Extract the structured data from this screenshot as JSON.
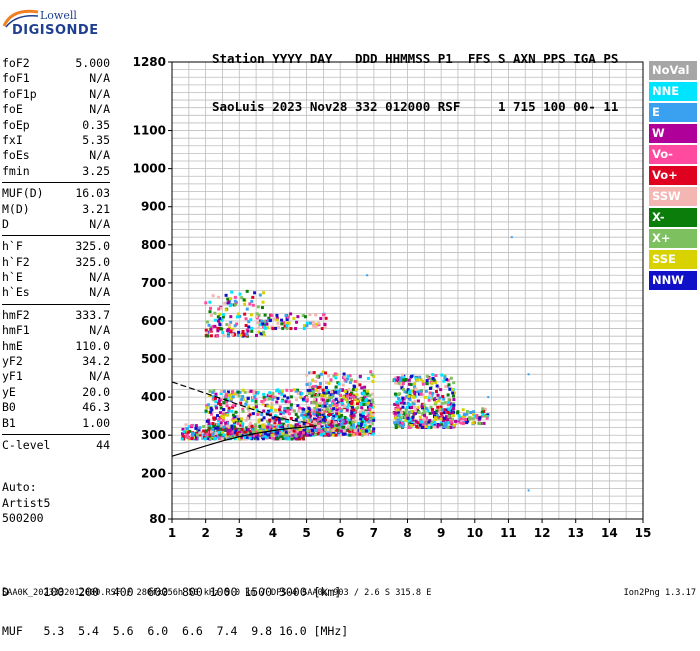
{
  "logo": {
    "line1": "Lowell",
    "line2": "DIGISONDE"
  },
  "header": {
    "labels": "Station YYYY DAY   DDD HHMMSS P1  FFS S AXN PPS IGA PS",
    "values": "SaoLuis 2023 Nov28 332 012000 RSF     1 715 100 00- 11"
  },
  "params": {
    "groups": [
      [
        [
          "foF2",
          "5.000"
        ],
        [
          "foF1",
          "N/A"
        ],
        [
          "foF1p",
          "N/A"
        ],
        [
          "foE",
          "N/A"
        ],
        [
          "foEp",
          "0.35"
        ],
        [
          "fxI",
          "5.35"
        ],
        [
          "foEs",
          "N/A"
        ],
        [
          "fmin",
          "3.25"
        ]
      ],
      [
        [
          "MUF(D)",
          "16.03"
        ],
        [
          "M(D)",
          "3.21"
        ],
        [
          "D",
          "N/A"
        ]
      ],
      [
        [
          "h`F",
          "325.0"
        ],
        [
          "h`F2",
          "325.0"
        ],
        [
          "h`E",
          "N/A"
        ],
        [
          "h`Es",
          "N/A"
        ]
      ],
      [
        [
          "hmF2",
          "333.7"
        ],
        [
          "hmF1",
          "N/A"
        ],
        [
          "hmE",
          "110.0"
        ],
        [
          "yF2",
          "34.2"
        ],
        [
          "yF1",
          "N/A"
        ],
        [
          "yE",
          "20.0"
        ],
        [
          "B0",
          "46.3"
        ],
        [
          "B1",
          "1.00"
        ]
      ],
      [
        [
          "C-level",
          "44"
        ]
      ]
    ]
  },
  "auto": {
    "line1": "Auto:",
    "line2": "Artist5",
    "line3": "500200"
  },
  "dmuf": {
    "d_row": "D     100  200  400  600  800 1000 1500 3000 [km]",
    "muf_row": "MUF   5.3  5.4  5.6  6.0  6.6  7.4  9.8 16.0 [MHz]"
  },
  "footer": {
    "left": "SAA0K_2023332012000.RSF / 280fx256h 50 kHz 5.0 km / DPS-4 SAA0K 903 / 2.6 S 315.8 E",
    "right": "Ion2Png 1.3.17"
  },
  "legend": [
    {
      "label": "NoVal",
      "color": "#a6a6a6"
    },
    {
      "label": "NNE",
      "color": "#00e5ff"
    },
    {
      "label": "E",
      "color": "#3aa0f0"
    },
    {
      "label": "W",
      "color": "#b0009a"
    },
    {
      "label": "Vo-",
      "color": "#ff4aa0"
    },
    {
      "label": "Vo+",
      "color": "#e00020"
    },
    {
      "label": "SSW",
      "color": "#f4b6b2"
    },
    {
      "label": "X-",
      "color": "#0a7d0a"
    },
    {
      "label": "X+",
      "color": "#7cc060"
    },
    {
      "label": "SSE",
      "color": "#d8d200"
    },
    {
      "label": "NNW",
      "color": "#1010c8"
    }
  ],
  "chart_data": {
    "type": "scatter",
    "xlim": [
      1,
      15
    ],
    "ylim": [
      80,
      1280
    ],
    "xticks": [
      "1",
      "2",
      "3",
      "4",
      "5",
      "6",
      "7",
      "8",
      "9",
      "10",
      "11",
      "12",
      "13",
      "14",
      "15"
    ],
    "yticks": [
      {
        "value": 80,
        "label": "80"
      },
      {
        "value": 200,
        "label": "200"
      },
      {
        "value": 300,
        "label": "300"
      },
      {
        "value": 400,
        "label": "400"
      },
      {
        "value": 500,
        "label": "500"
      },
      {
        "value": 600,
        "label": "600"
      },
      {
        "value": 700,
        "label": "700"
      },
      {
        "value": 800,
        "label": "800"
      },
      {
        "value": 900,
        "label": "900"
      },
      {
        "value": 1000,
        "label": "1000"
      },
      {
        "value": 1100,
        "label": "1100"
      },
      {
        "value": 1280,
        "label": "1280"
      }
    ],
    "grid": true,
    "clusters": [
      {
        "x": [
          1.3,
          5.0
        ],
        "y": [
          290,
          330
        ],
        "n": 420
      },
      {
        "x": [
          2.0,
          7.0
        ],
        "y": [
          300,
          420
        ],
        "n": 900
      },
      {
        "x": [
          5.0,
          7.0
        ],
        "y": [
          310,
          470
        ],
        "n": 350
      },
      {
        "x": [
          7.6,
          9.4
        ],
        "y": [
          320,
          460
        ],
        "n": 450
      },
      {
        "x": [
          9.4,
          10.4
        ],
        "y": [
          330,
          370
        ],
        "n": 60
      },
      {
        "x": [
          2.0,
          3.8
        ],
        "y": [
          560,
          680
        ],
        "n": 150
      },
      {
        "x": [
          3.5,
          5.6
        ],
        "y": [
          580,
          620
        ],
        "n": 80
      }
    ],
    "isolated_points": [
      [
        11.1,
        820
      ],
      [
        11.6,
        460
      ],
      [
        11.6,
        155
      ],
      [
        10.4,
        400
      ],
      [
        6.8,
        720
      ]
    ],
    "curves": [
      {
        "name": "o-trace",
        "points": [
          [
            1,
            245
          ],
          [
            1.5,
            258
          ],
          [
            2,
            272
          ],
          [
            2.5,
            285
          ],
          [
            3,
            296
          ],
          [
            3.5,
            305
          ],
          [
            4,
            312
          ],
          [
            4.5,
            318
          ],
          [
            5,
            322
          ],
          [
            5.3,
            325
          ]
        ]
      },
      {
        "name": "profile",
        "dashed_start": true,
        "points": [
          [
            1,
            440
          ],
          [
            1.5,
            425
          ],
          [
            2,
            410
          ],
          [
            2.5,
            395
          ],
          [
            3,
            380
          ],
          [
            3.5,
            365
          ],
          [
            4,
            350
          ],
          [
            4.5,
            340
          ],
          [
            5,
            333
          ]
        ]
      }
    ]
  }
}
